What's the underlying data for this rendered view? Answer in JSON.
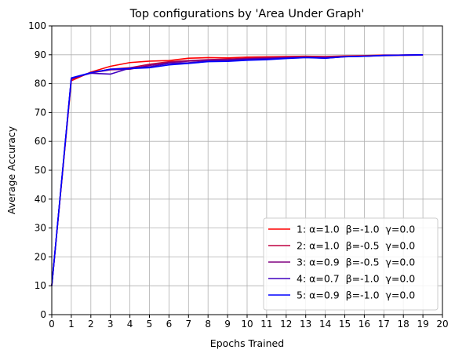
{
  "chart_data": {
    "type": "line",
    "title": "Top configurations by 'Area Under Graph'",
    "xlabel": "Epochs Trained",
    "ylabel": "Average Accuracy",
    "xlim": [
      0,
      20
    ],
    "ylim": [
      0,
      100
    ],
    "xticks": [
      0,
      1,
      2,
      3,
      4,
      5,
      6,
      7,
      8,
      9,
      10,
      11,
      12,
      13,
      14,
      15,
      16,
      17,
      18,
      19,
      20
    ],
    "yticks": [
      0,
      10,
      20,
      30,
      40,
      50,
      60,
      70,
      80,
      90,
      100
    ],
    "grid": true,
    "legend_position": "lower-right",
    "x": [
      0,
      1,
      2,
      3,
      4,
      5,
      6,
      7,
      8,
      9,
      10,
      11,
      12,
      13,
      14,
      15,
      16,
      17,
      18,
      19
    ],
    "series": [
      {
        "name": "1: α=1.0  β=-1.0  γ=0.0",
        "color": "#ff0000",
        "values": [
          10.0,
          81.0,
          84.0,
          86.0,
          87.3,
          87.8,
          88.0,
          88.8,
          89.0,
          88.9,
          89.2,
          89.3,
          89.4,
          89.5,
          89.4,
          89.6,
          89.7,
          89.9,
          89.9,
          90.0
        ]
      },
      {
        "name": "2: α=1.0  β=-0.5  γ=0.0",
        "color": "#bf0040",
        "values": [
          10.0,
          81.5,
          83.8,
          85.0,
          85.5,
          86.7,
          87.6,
          88.0,
          88.3,
          88.5,
          88.8,
          89.0,
          89.2,
          89.3,
          89.3,
          89.5,
          89.6,
          89.8,
          89.9,
          90.0
        ]
      },
      {
        "name": "3: α=0.9  β=-0.5  γ=0.0",
        "color": "#800080",
        "values": [
          10.0,
          81.8,
          83.7,
          84.8,
          85.0,
          86.3,
          87.3,
          87.8,
          88.2,
          88.3,
          88.6,
          88.8,
          89.0,
          89.2,
          89.2,
          89.4,
          89.5,
          89.7,
          89.8,
          89.9
        ]
      },
      {
        "name": "4: α=0.7  β=-1.0  γ=0.0",
        "color": "#4000bf",
        "values": [
          10.0,
          81.8,
          83.6,
          83.3,
          85.4,
          85.8,
          87.0,
          87.2,
          87.9,
          88.0,
          88.4,
          88.6,
          88.9,
          89.1,
          88.8,
          89.3,
          89.5,
          89.8,
          89.9,
          90.0
        ]
      },
      {
        "name": "5: α=0.9  β=-1.0  γ=0.0",
        "color": "#0000ff",
        "values": [
          10.0,
          82.0,
          83.8,
          85.0,
          85.2,
          85.5,
          86.5,
          87.0,
          87.6,
          87.7,
          88.1,
          88.3,
          88.7,
          89.0,
          88.8,
          89.3,
          89.5,
          89.8,
          89.9,
          90.0
        ]
      }
    ]
  }
}
